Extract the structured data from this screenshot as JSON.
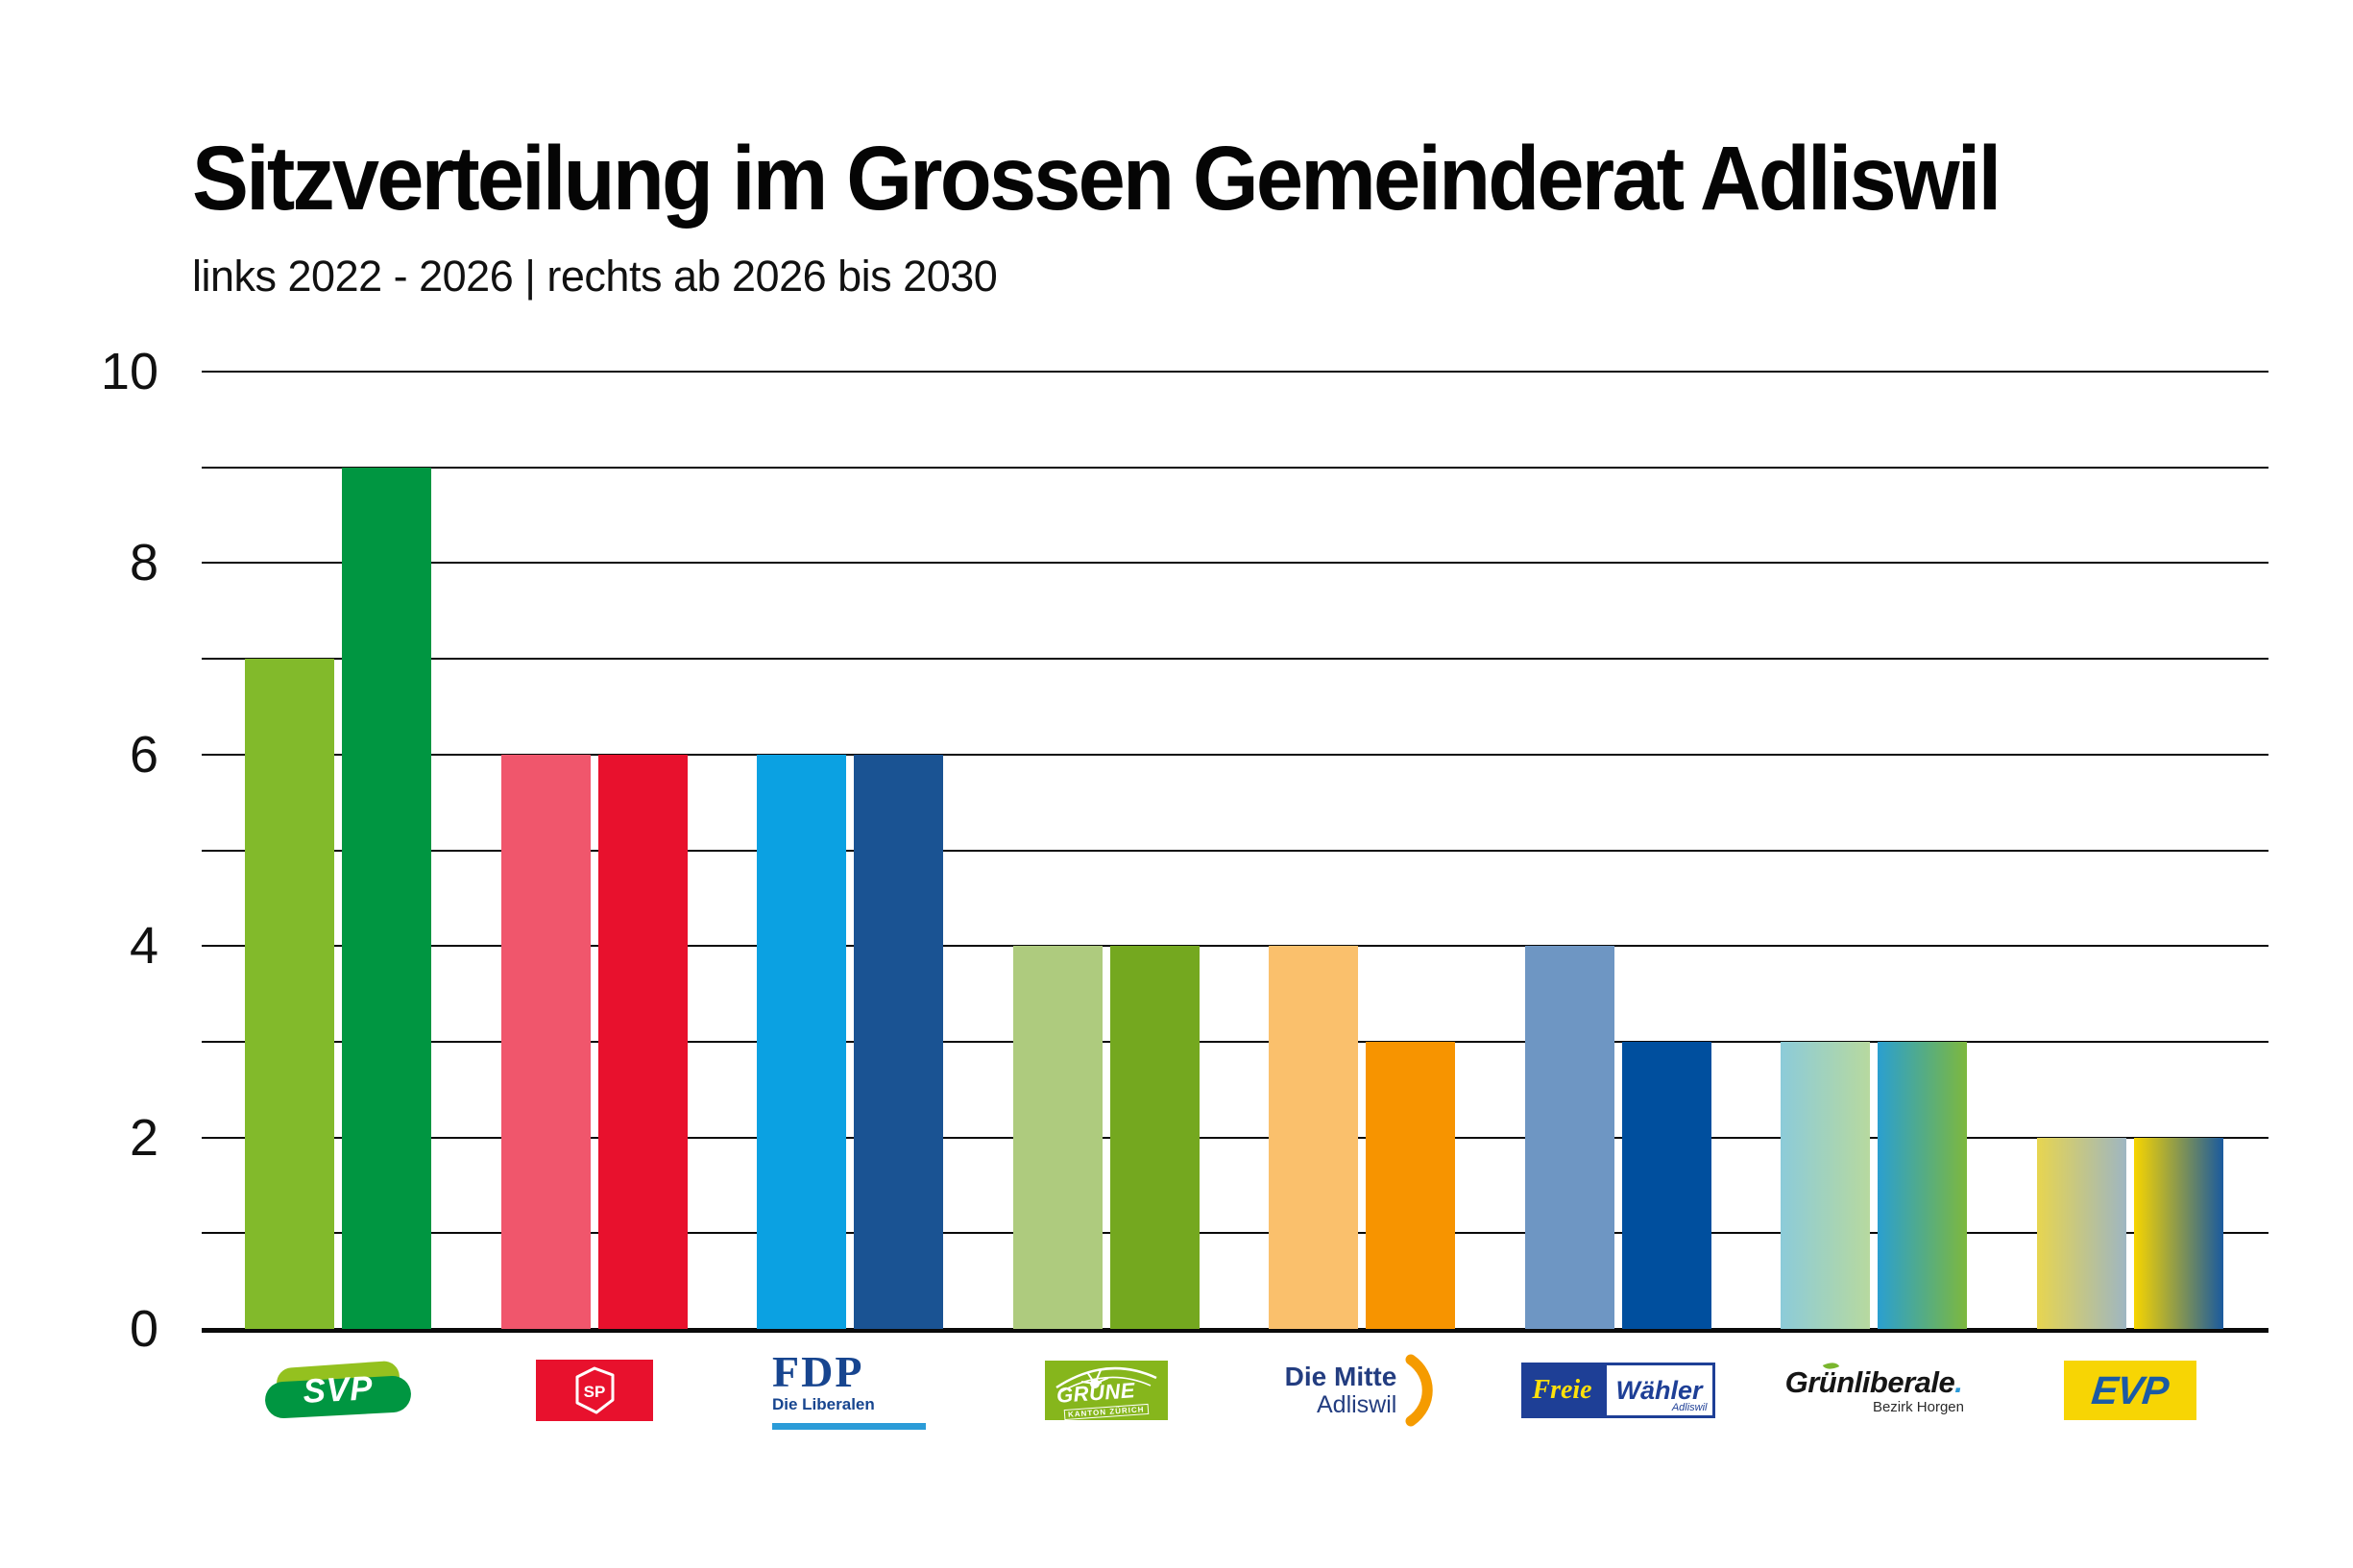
{
  "title": "Sitzverteilung im Grossen Gemeinderat Adliswil",
  "subtitle": "links 2022 - 2026 | rechts ab 2026 bis 2030",
  "chart_data": {
    "type": "bar",
    "title": "Sitzverteilung im Grossen Gemeinderat Adliswil",
    "subtitle": "links 2022 - 2026 | rechts ab 2026 bis 2030",
    "categories": [
      "SVP",
      "SP",
      "FDP",
      "GRÜNE",
      "Die Mitte",
      "Freie Wähler",
      "Grünliberale",
      "EVP"
    ],
    "series": [
      {
        "name": "links: 2022 - 2026",
        "values": [
          7,
          6,
          6,
          4,
          4,
          4,
          3,
          2
        ],
        "colors": [
          "#82ba2b",
          "#f0566c",
          "#0ba1e2",
          "#aecb7e",
          "#fac06c",
          "#6e96c3",
          [
            "#8ccbd9",
            "#b7d99f"
          ],
          [
            "#e7d550",
            "#9eb6c2"
          ]
        ]
      },
      {
        "name": "rechts: ab 2026 bis 2030",
        "values": [
          9,
          6,
          6,
          4,
          3,
          3,
          3,
          2
        ],
        "colors": [
          "#009641",
          "#e8112d",
          "#1a5393",
          "#74a81f",
          "#f79400",
          "#004f9e",
          [
            "#2a9fd0",
            "#7db83e"
          ],
          [
            "#f7d500",
            "#1a5a9e"
          ]
        ]
      }
    ],
    "xlabel": "",
    "ylabel": "",
    "ylim": [
      0,
      10
    ],
    "yticks": [
      0,
      2,
      4,
      6,
      8,
      10
    ],
    "gridlines": "horizontal, every 1 seat, black; baseline thicker",
    "legend_position": "party logos below x-axis"
  },
  "parties": [
    {
      "id": "svp",
      "text": "SVP"
    },
    {
      "id": "sp",
      "text": "SP"
    },
    {
      "id": "fdp",
      "text": "FDP",
      "subtext": "Die Liberalen"
    },
    {
      "id": "gruene",
      "text": "GRÜNE",
      "subtext": "KANTON ZÜRICH"
    },
    {
      "id": "mitte",
      "text": "Die Mitte",
      "subtext": "Adliswil"
    },
    {
      "id": "freie-waehler",
      "text_left": "Freie",
      "text_right": "Wähler",
      "subtext": "Adliswil"
    },
    {
      "id": "gruenliberale",
      "text": "Grünliberale",
      "dot": ".",
      "subtext": "Bezirk Horgen"
    },
    {
      "id": "evp",
      "text": "EVP"
    }
  ]
}
